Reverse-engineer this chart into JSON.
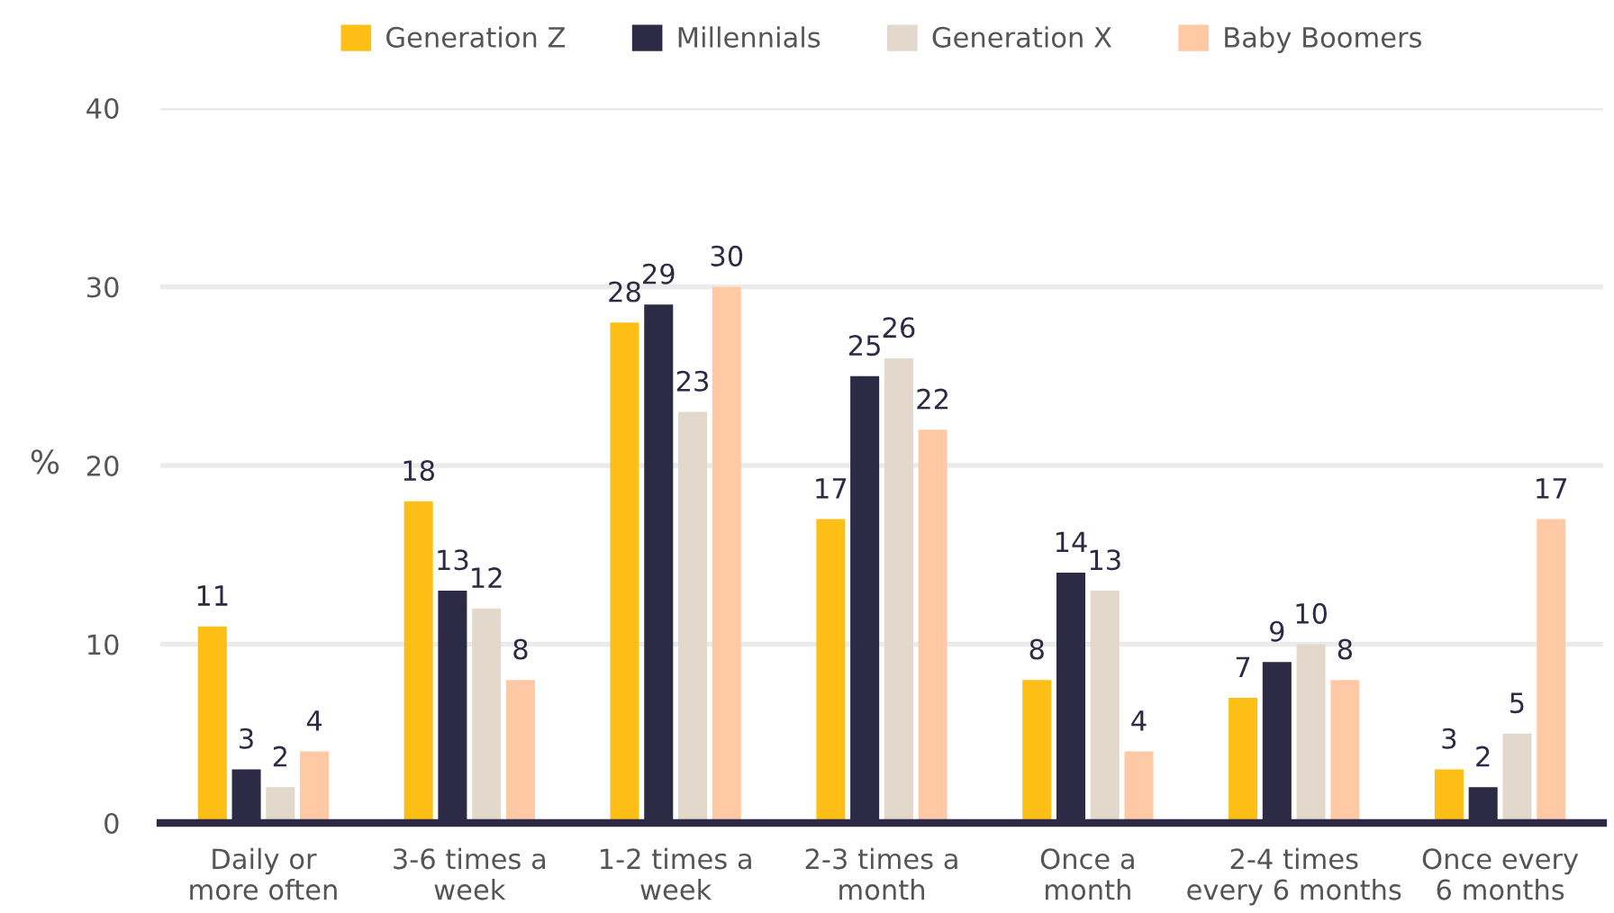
{
  "chart_data": {
    "type": "bar",
    "categories": [
      "Daily or\nmore often",
      "3-6 times a\nweek",
      "1-2 times a\nweek",
      "2-3 times a\nmonth",
      "Once a\nmonth",
      "2-4 times\nevery 6 months",
      "Once every\n6 months"
    ],
    "series": [
      {
        "name": "Generation Z",
        "color": "#fdbe16",
        "values": [
          11,
          18,
          28,
          17,
          8,
          7,
          3
        ]
      },
      {
        "name": "Millennials",
        "color": "#2c2a44",
        "values": [
          3,
          13,
          29,
          25,
          14,
          9,
          2
        ]
      },
      {
        "name": "Generation X",
        "color": "#e3d8cc",
        "values": [
          2,
          12,
          23,
          26,
          13,
          10,
          5
        ]
      },
      {
        "name": "Baby Boomers",
        "color": "#ffc9a5",
        "values": [
          4,
          8,
          30,
          22,
          4,
          8,
          17
        ]
      }
    ],
    "ylabel": "%",
    "ylim": [
      0,
      40
    ],
    "yticks": [
      0,
      10,
      20,
      30,
      40
    ],
    "grid": "y",
    "legend": "top",
    "data_labels": true
  }
}
